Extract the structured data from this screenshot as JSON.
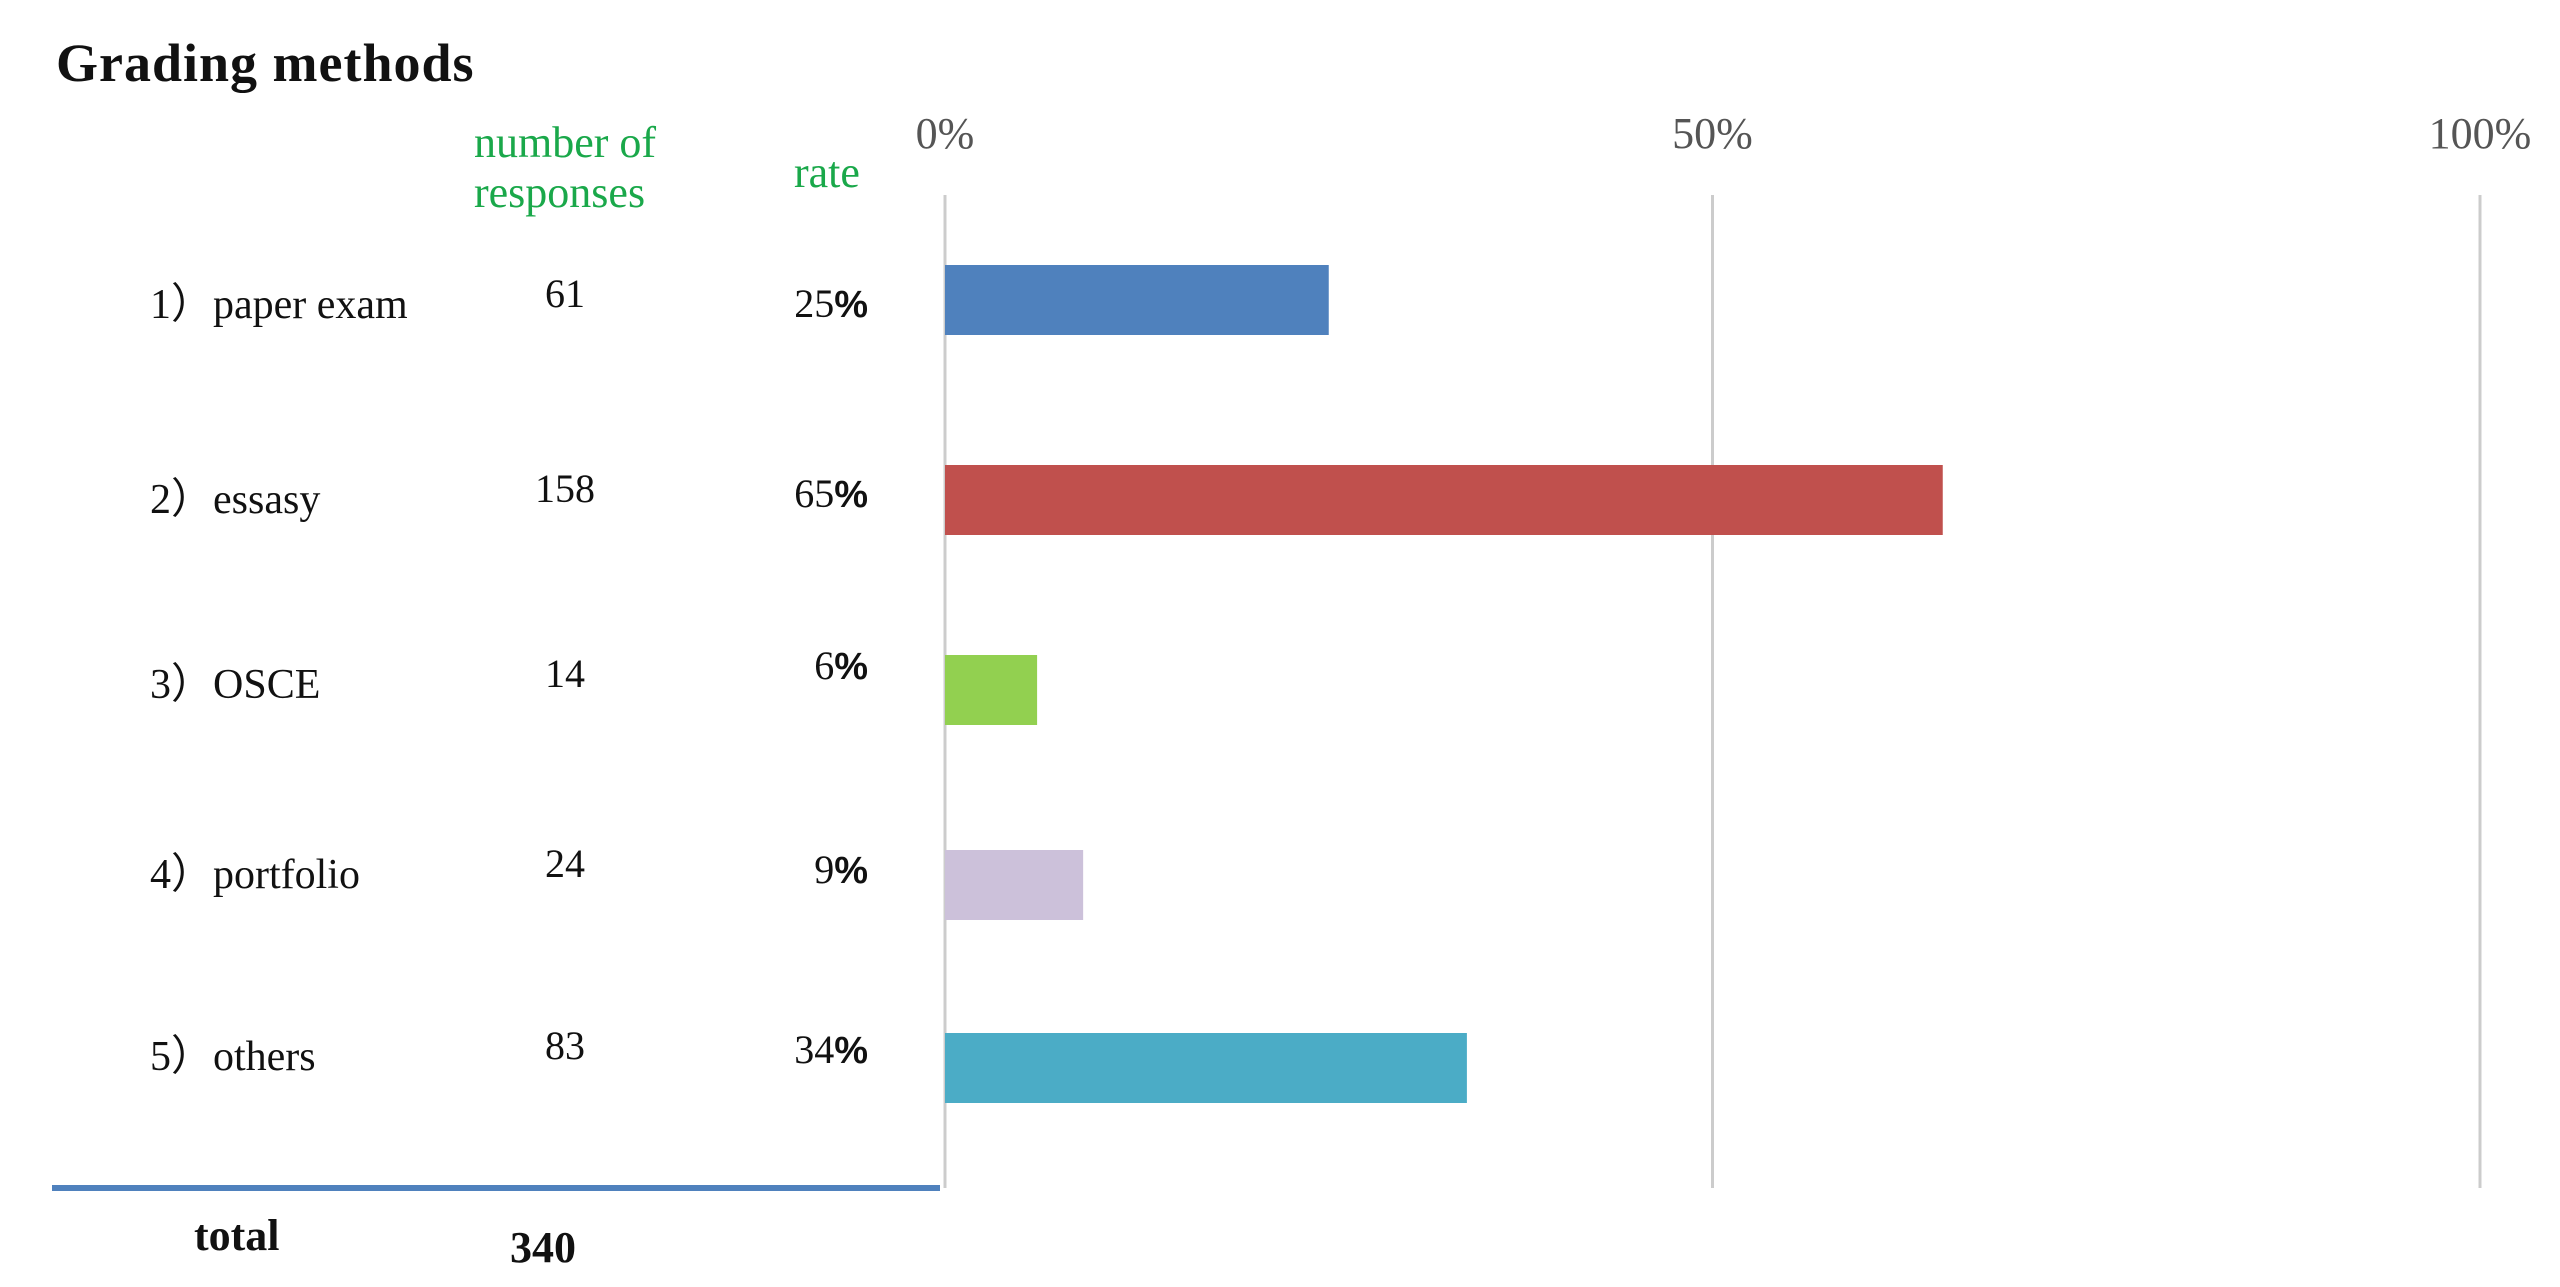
{
  "title": "Grading methods",
  "columns": {
    "responses_header_line1": "number of",
    "responses_header_line2": "responses",
    "rate_header": "rate"
  },
  "total": {
    "label": "total",
    "value": "340"
  },
  "colors": {
    "axis_line": "#cccccc",
    "base_line": "#4f81bd",
    "header_green": "#1aa84a"
  },
  "chart_data": {
    "type": "bar",
    "orientation": "horizontal",
    "title": "Grading methods",
    "xlim": [
      0,
      100
    ],
    "x_ticks": [
      "0%",
      "50%",
      "100%"
    ],
    "x_tick_values": [
      0,
      50,
      100
    ],
    "grid": true,
    "categories": [
      "1）paper exam",
      "2）essasy",
      "3）OSCE",
      "4）portfolio",
      "5）others"
    ],
    "responses": [
      "61",
      "158",
      "14",
      "24",
      "83"
    ],
    "rate_labels": [
      {
        "num": "25",
        "pct": "%"
      },
      {
        "num": "65",
        "pct": "%"
      },
      {
        "num": "6",
        "pct": "%"
      },
      {
        "num": "9",
        "pct": "%"
      },
      {
        "num": "34",
        "pct": "%"
      }
    ],
    "values": [
      25,
      65,
      6,
      9,
      34
    ],
    "bar_colors": [
      "#4f81bd",
      "#c0504d",
      "#92d050",
      "#ccc1da",
      "#4bacc6"
    ]
  }
}
